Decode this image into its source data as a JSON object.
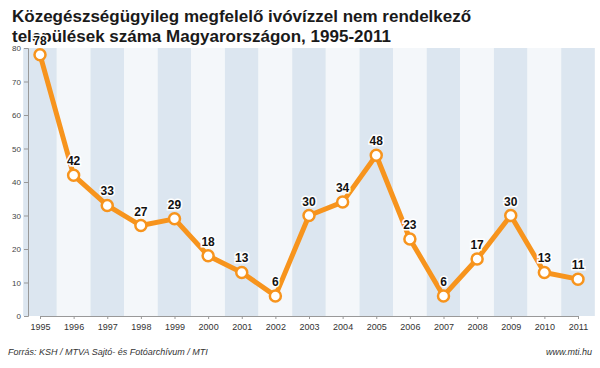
{
  "chart_data": {
    "type": "line",
    "title": "Közegészségügyileg megfelelő ivóvízzel nem rendelkező települések száma Magyarországon, 1995-2011",
    "categories": [
      "1995",
      "1996",
      "1997",
      "1998",
      "1999",
      "2000",
      "2001",
      "2002",
      "2003",
      "2004",
      "2005",
      "2006",
      "2007",
      "2008",
      "2009",
      "2010",
      "2011"
    ],
    "values": [
      78,
      42,
      33,
      27,
      29,
      18,
      13,
      6,
      30,
      34,
      48,
      23,
      6,
      17,
      30,
      13,
      11
    ],
    "color": "#f7941d",
    "marker": "circle",
    "line_style": "solid",
    "ylim": [
      0,
      80
    ],
    "yticks": [
      0,
      10,
      20,
      30,
      40,
      50,
      60,
      70,
      80
    ],
    "grid": true,
    "data_labels": true,
    "source": "Forrás: KSH / MTVA Sajtó- és Fotóarchívum / MTI",
    "website": "www.mti.hu"
  }
}
